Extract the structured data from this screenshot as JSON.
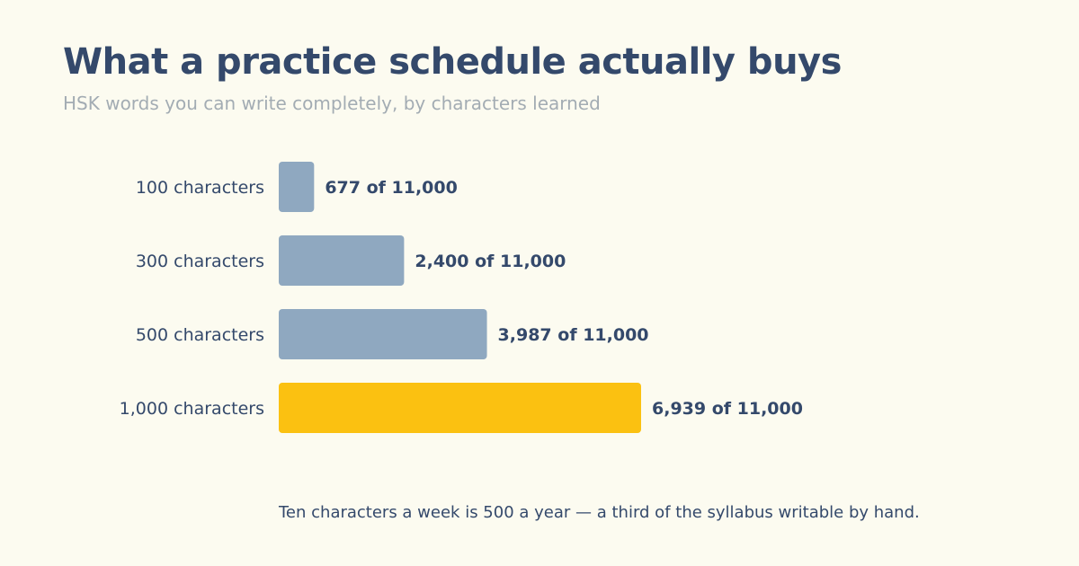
{
  "title": "What a practice schedule actually buys",
  "subtitle": "HSK words you can write completely, by characters learned",
  "note": "Ten characters a week is 500 a year — a third of the syllabus writable by hand.",
  "chart_data": {
    "type": "bar",
    "orientation": "horizontal",
    "categories": [
      "100 characters",
      "300 characters",
      "500 characters",
      "1,000 characters"
    ],
    "values": [
      677,
      2400,
      3987,
      6939
    ],
    "value_labels": [
      "677 of 11,000",
      "2,400 of 11,000",
      "3,987 of 11,000",
      "6,939 of 11,000"
    ],
    "total": 11000,
    "highlight_index": 3,
    "colors": {
      "default": "#8fa8c0",
      "highlight": "#fbc111"
    },
    "grid": false,
    "legend": "none"
  }
}
